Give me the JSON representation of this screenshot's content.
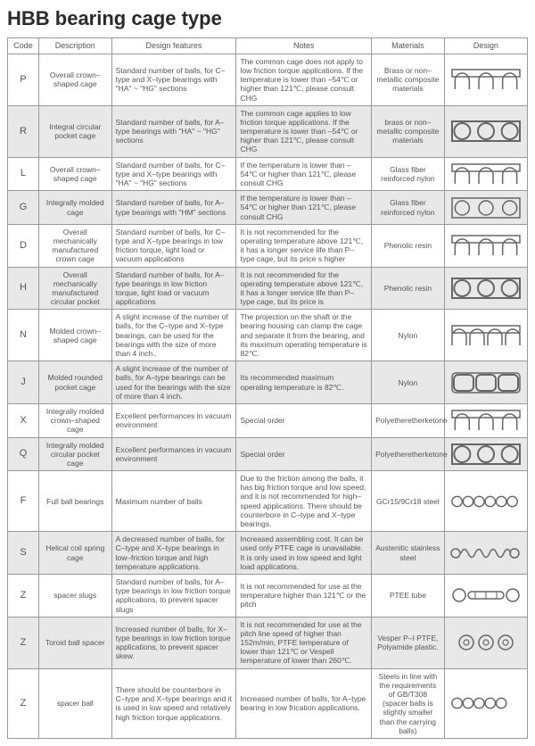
{
  "title": "HBB bearing cage type",
  "headers": {
    "code": "Code",
    "description": "Description",
    "design_features": "Design features",
    "notes": "Notes",
    "materials": "Materials",
    "design": "Design"
  },
  "rows": [
    {
      "code": "P",
      "description": "Overall crown–shaped cage",
      "design_features": "Standard number of balls, for C–type and X–type bearings with \"HA\" ~ \"HG\" sections",
      "notes": "The common cage does not apply to low friction torque applications. If the temperature is lower than –54℃ or higher than 121℃, please consult CHG",
      "materials": "Brass or non–metallic composite materials",
      "icon": "crown3",
      "alt": false
    },
    {
      "code": "R",
      "description": "Integral circular pocket cage",
      "design_features": "Standard number of balls, for A–type bearings with \"HA\" ~ \"HG\" sections",
      "notes": "The common cage applies to low friction torque applications. If the temperature is lower than –54℃ or higher than 121℃, please consult CHG",
      "materials": "brass or non–metallic composite materials",
      "icon": "rect3thick",
      "alt": true
    },
    {
      "code": "L",
      "description": "Overall crown–shaped cage",
      "design_features": "Standard number of balls, for C–type and X–type bearings with \"HA\" ~ \"HG\" sections",
      "notes": "If the temperature is lower than –54℃ or higher than 121℃, please consult CHG",
      "materials": "Glass fiber reinforced nylon",
      "icon": "crown3b",
      "alt": false
    },
    {
      "code": "G",
      "description": "Integrally molded cage",
      "design_features": "Standard number of balls, for A–type bearings with \"HM\" sections",
      "notes": "If the temperature is lower than –54℃ or higher than 121℃, please consult CHG",
      "materials": "Glass fiber reinforced nylon",
      "icon": "rect3",
      "alt": true
    },
    {
      "code": "D",
      "description": "Overall mechanically manufactured crown cage",
      "design_features": "Standard number of balls, for C–type and X–type bearings in low friction torque, light load or vacuum applications",
      "notes": "It is not recommended for the operating temperature above 121℃, it has a longer service life than P–type cage, but its price s higher",
      "materials": "Phenolic resin",
      "icon": "crown3",
      "alt": false
    },
    {
      "code": "H",
      "description": "Overall mechanically manufactured circular pocket",
      "design_features": "Standard number of balls, for A–type bearings in low friction torque, light load or vacuum applications",
      "notes": "It is not recommended for the operating temperature above 121℃, it has a longer service life than P–type cage, but its price is",
      "materials": "Phenolic resin",
      "icon": "rect3thick",
      "alt": true
    },
    {
      "code": "N",
      "description": "Molded crown–shaped cage",
      "design_features": "A slight increase of the number of balls, for the C–type and X–type bearings, can be used for the bearings with the size of more than 4 inch..",
      "notes": "The projection on the shaft or the bearing housing can clamp the cage and separate it from the bearing, and its maximum operating temperature is 82℃.",
      "materials": "Nylon",
      "icon": "crown4",
      "alt": false
    },
    {
      "code": "J",
      "description": "Molded rounded pocket cage",
      "design_features": "A slight increase of the number of balls, for A–type bearings can be used for the bearings with the size of more than 4 inch.",
      "notes": "Its recommended maximum operating temperature is 82℃.",
      "materials": "Nylon",
      "icon": "rounded3",
      "alt": true
    },
    {
      "code": "X",
      "description": "Integrally molded crown–shaped cage",
      "design_features": "Excellent performances in vacuum environment",
      "notes": "Special order",
      "materials": "Polyetheretherketone",
      "icon": "crown3c",
      "alt": false
    },
    {
      "code": "Q",
      "description": "Integrally molded circular pocket cage",
      "design_features": "Excellent performances in vacuum environment",
      "notes": "Special order",
      "materials": "Polyetheretherketone",
      "icon": "rect3thick",
      "alt": true
    },
    {
      "code": "F",
      "description": "Full ball bearings",
      "design_features": "Maximum number of balls",
      "notes": "Due to the friction among the balls, it has big friction torque and low speed, and it is not recommended for high–speed applications. There should be counterbore in C–type and X–type bearings.",
      "materials": "GCr15/9Cr18 steel",
      "icon": "circles6",
      "alt": false
    },
    {
      "code": "S",
      "description": "Helical coil spring cage",
      "design_features": "A decreased number of balls, for C–type and X–type bearings in low–friction torque and high temperature applications.",
      "notes": "Increased assembling cost. It can be used only PTFE cage is unavailable. It is only used in low speed and light load applications.",
      "materials": "Austenitic stainless steel",
      "icon": "spring",
      "alt": true
    },
    {
      "code": "Z",
      "description": "spacer slugs",
      "design_features": "Standard number of balls, for A–type bearings in low friction torque applications, to prevent spacer slugs",
      "notes": "It is not recommended for use at the temperature higher than 121℃ or the pitch",
      "materials": "PTEE tube",
      "icon": "slugs",
      "alt": false
    },
    {
      "code": "Z",
      "description": "Toroid ball spacer",
      "design_features": "Increased number of balls, for X–type bearings in low friction torque applications, to prevent spacer skew.",
      "notes": "It is not recommended for use at the pitch line speed of higher than 152m/min, PTFE temperature of lower than 121℃ or Vespell temperature of lower than 260℃.",
      "materials": "Vesper P–I PTFE, Polyamide plastic.",
      "icon": "toroid",
      "alt": true
    },
    {
      "code": "Z",
      "description": "spacer ball",
      "design_features": "There should be counterbore in C–type and X–type bearings and it is used in low speed and relatively high friction torque applications.",
      "notes": "Increased number of balls, for A–type bearing in low frication applications.",
      "materials": "Steels in line with the requirements of GB/T308 (spacer balls is slightly smaller than the carrying balls)",
      "icon": "circles5",
      "alt": false
    }
  ],
  "svg_stroke": "#666666",
  "svg_fill": "#e8e8e8"
}
